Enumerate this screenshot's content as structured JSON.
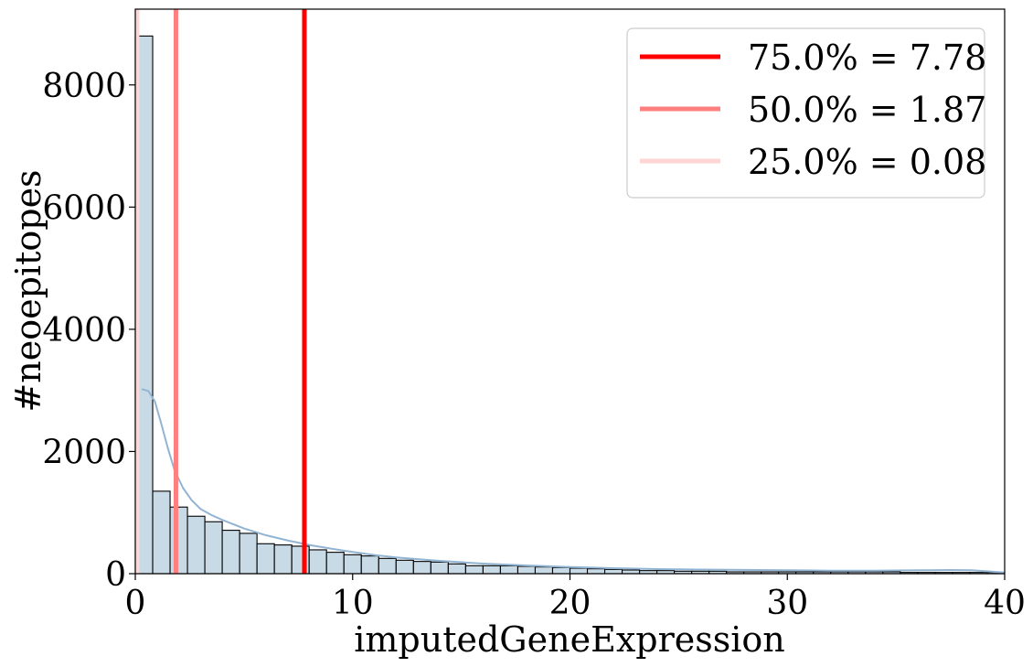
{
  "chart_data": {
    "type": "bar",
    "xlabel": "imputedGeneExpression",
    "ylabel": "#neoepitopes",
    "xlim": [
      0,
      40
    ],
    "ylim": [
      0,
      9240
    ],
    "x_ticks": [
      0,
      10,
      20,
      30,
      40
    ],
    "y_ticks": [
      0,
      2000,
      4000,
      6000,
      8000
    ],
    "grid": false,
    "bin_width": 0.8,
    "bin_start": 0,
    "bar_color": "#c9dae7",
    "bar_edge_color": "#000000",
    "kde_color": "#92b4d3",
    "counts": [
      8800,
      1350,
      1090,
      940,
      850,
      710,
      660,
      490,
      470,
      450,
      390,
      350,
      310,
      290,
      250,
      220,
      200,
      190,
      160,
      130,
      130,
      130,
      120,
      110,
      100,
      90,
      80,
      70,
      60,
      50,
      50,
      40,
      40,
      40,
      30,
      30,
      30,
      30,
      30,
      30,
      30,
      30,
      30,
      30,
      20,
      20,
      20,
      20,
      20,
      20
    ],
    "kde": {
      "x": [
        0.3,
        0.6,
        0.9,
        1.2,
        1.5,
        1.8,
        2.2,
        2.6,
        3.0,
        3.5,
        4.0,
        5.0,
        6.0,
        7.0,
        8.0,
        9.0,
        10.0,
        11.0,
        12.0,
        14.0,
        16.0,
        18.0,
        20.0,
        22.0,
        24.0,
        26.0,
        28.0,
        30.0,
        32.0,
        34.0,
        36.0,
        37.5,
        38.5,
        40.0
      ],
      "y": [
        3020,
        2990,
        2820,
        2450,
        2050,
        1700,
        1400,
        1200,
        1060,
        960,
        880,
        740,
        630,
        545,
        470,
        410,
        355,
        305,
        265,
        210,
        165,
        135,
        110,
        90,
        75,
        68,
        62,
        55,
        50,
        48,
        55,
        60,
        55,
        20
      ]
    },
    "quantiles": [
      {
        "label": "75.0% = 7.78",
        "value": 7.78,
        "color": "#ff0000"
      },
      {
        "label": "50.0% = 1.87",
        "value": 1.87,
        "color": "#ff7f7f"
      },
      {
        "label": "25.0% = 0.08",
        "value": 0.08,
        "color": "#ffd5d5"
      }
    ],
    "legend_position": "top-right"
  }
}
